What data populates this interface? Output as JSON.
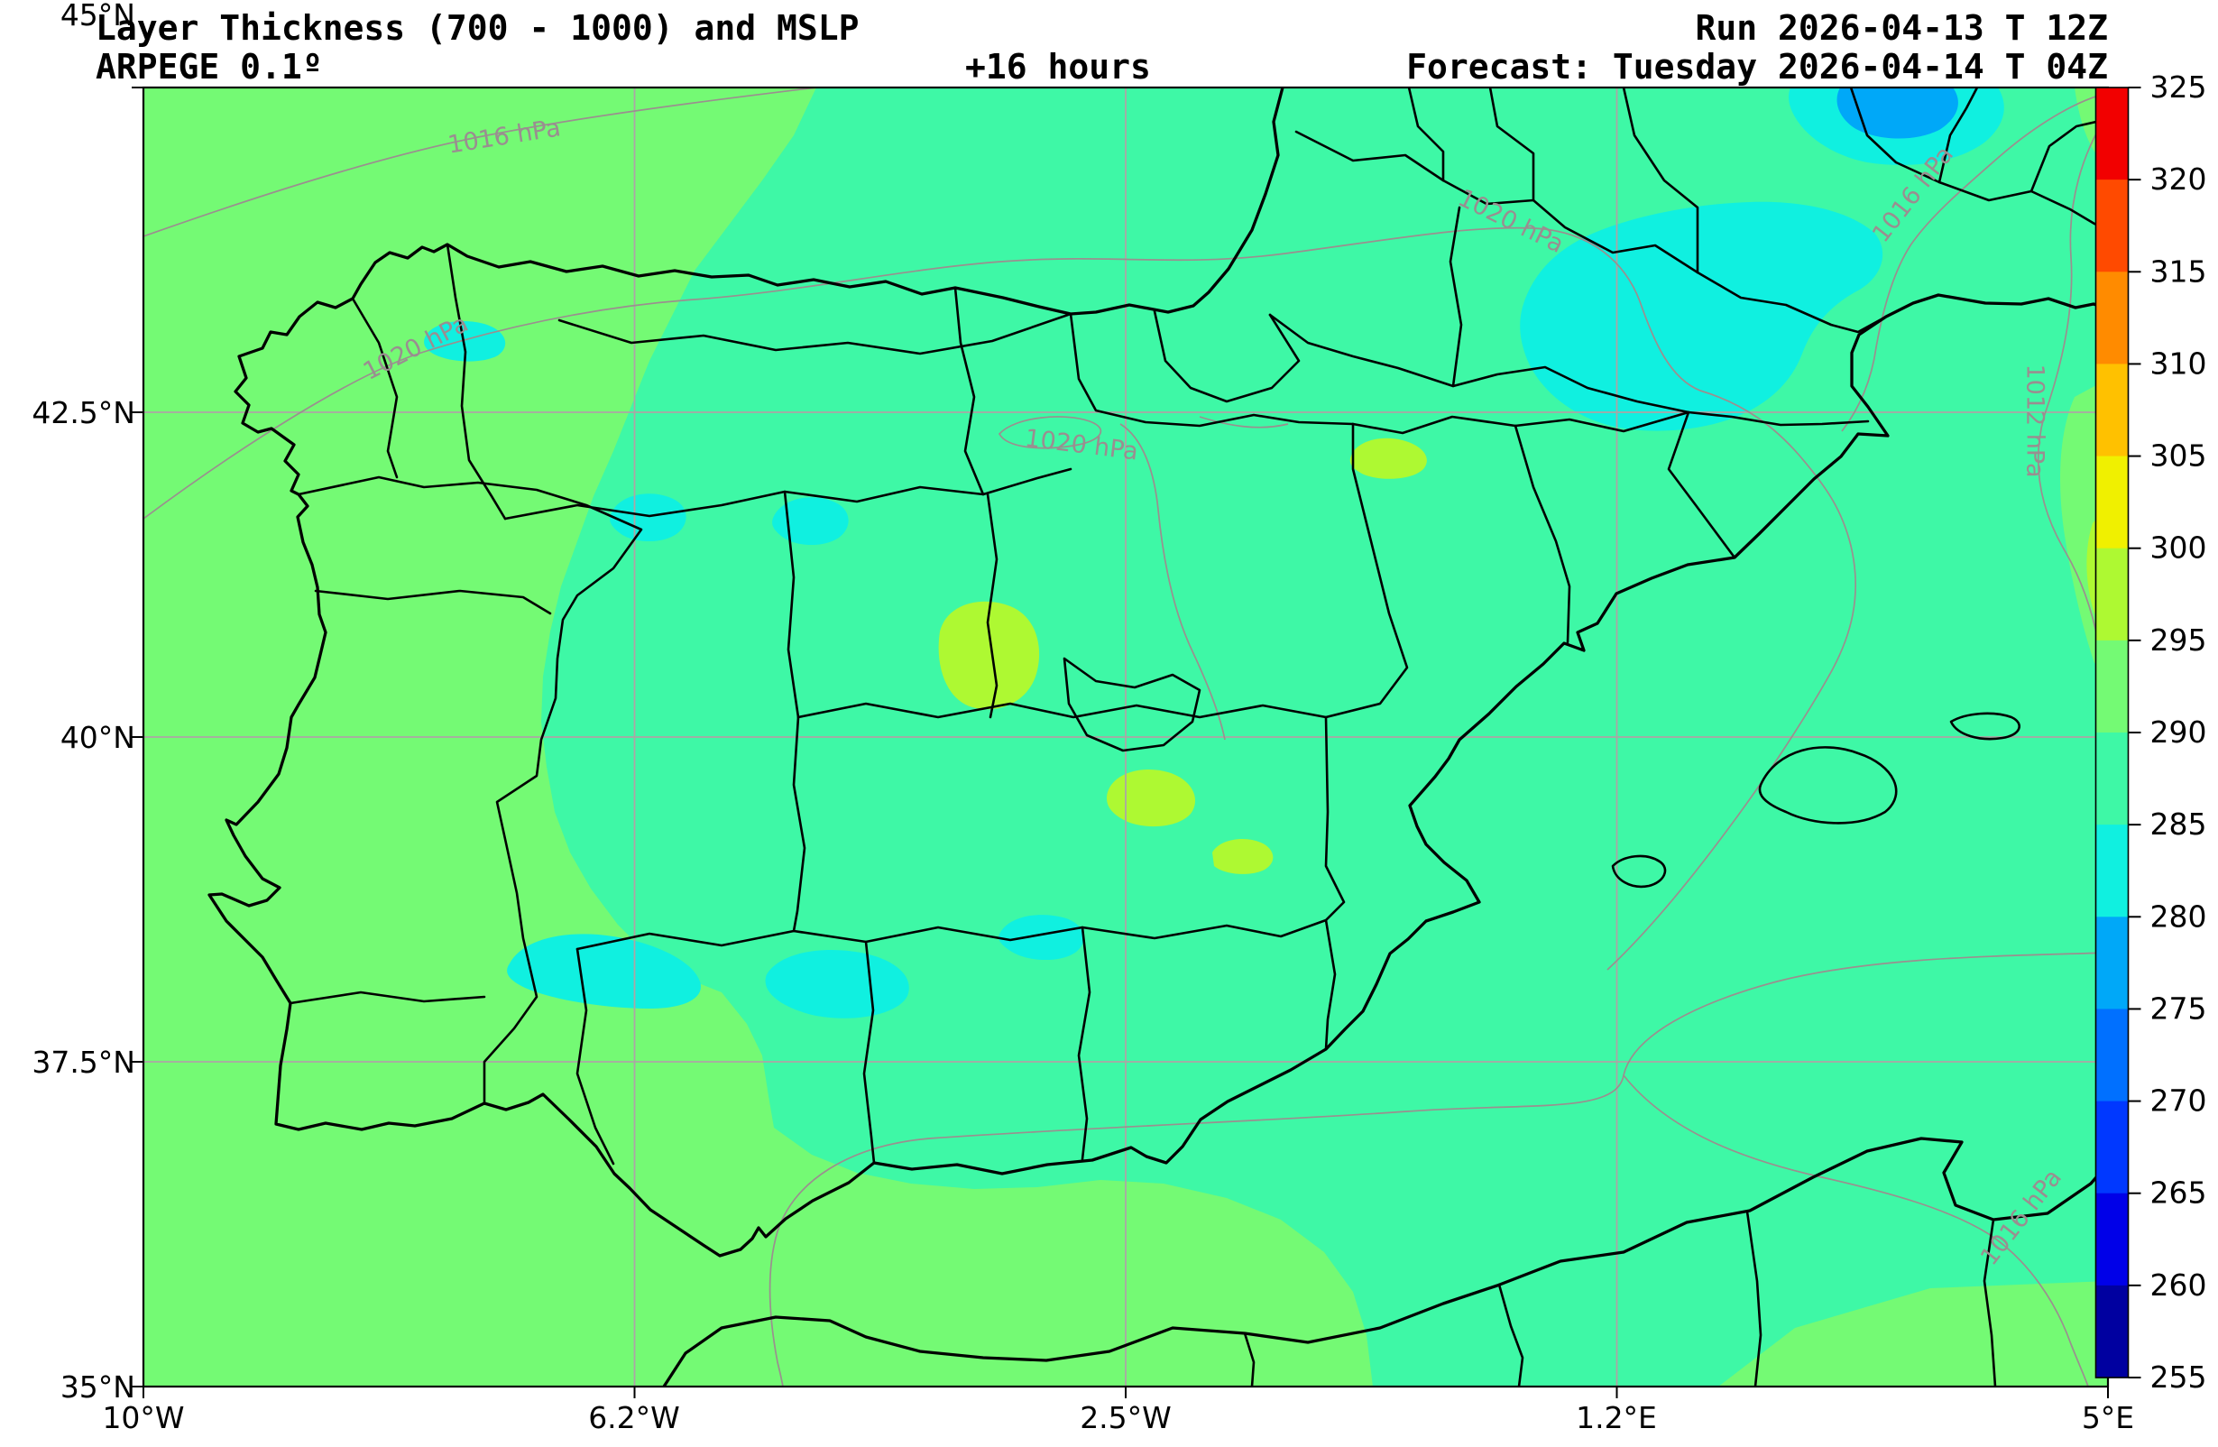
{
  "header": {
    "title": "Layer Thickness (700 - 1000) and MSLP",
    "model": "ARPEGE 0.1º",
    "lead_time": "+16 hours",
    "run": "Run 2026-04-13 T 12Z",
    "forecast": "Forecast: Tuesday 2026-04-14 T 04Z"
  },
  "axes": {
    "x_ticks": [
      "10°W",
      "6.2°W",
      "2.5°W",
      "1.2°E",
      "5°E"
    ],
    "y_ticks": [
      "45°N",
      "42.5°N",
      "40°N",
      "37.5°N",
      "35°N"
    ]
  },
  "colorbar": {
    "tick_labels": [
      "325",
      "320",
      "315",
      "310",
      "305",
      "300",
      "295",
      "290",
      "285",
      "280",
      "275",
      "270",
      "265",
      "260",
      "255"
    ],
    "segments_top_to_bottom": [
      {
        "range": "320-325",
        "color": "#f20000"
      },
      {
        "range": "315-320",
        "color": "#ff4a00"
      },
      {
        "range": "310-315",
        "color": "#ff8b00"
      },
      {
        "range": "305-310",
        "color": "#ffc100"
      },
      {
        "range": "300-305",
        "color": "#f0f000"
      },
      {
        "range": "295-300",
        "color": "#aef932"
      },
      {
        "range": "290-295",
        "color": "#74fa74"
      },
      {
        "range": "285-290",
        "color": "#3ef8a6"
      },
      {
        "range": "280-285",
        "color": "#10f0e0"
      },
      {
        "range": "275-280",
        "color": "#00a8f8"
      },
      {
        "range": "270-275",
        "color": "#0070ff"
      },
      {
        "range": "265-270",
        "color": "#0038ff"
      },
      {
        "range": "260-265",
        "color": "#0000e8"
      },
      {
        "range": "255-260",
        "color": "#0000a0"
      }
    ]
  },
  "contour_labels": [
    {
      "text": "1016 hPa"
    },
    {
      "text": "1020 hPa"
    },
    {
      "text": "1020 hPa"
    },
    {
      "text": "1020 hPa"
    },
    {
      "text": "1016 hPa"
    },
    {
      "text": "1012 hPa"
    },
    {
      "text": "1016 hPa"
    }
  ],
  "map_palette": {
    "base_285_290": "#3ef8a6",
    "light_green_290_295": "#74fa74",
    "green_yellow_295_300": "#aef932",
    "cyan_280_285": "#10f0e0",
    "sky_blue_275_280": "#00a8f8"
  }
}
